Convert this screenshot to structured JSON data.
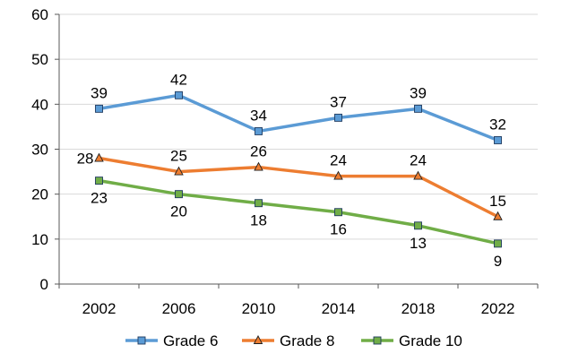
{
  "chart_data": {
    "type": "line",
    "categories": [
      "2002",
      "2006",
      "2010",
      "2014",
      "2018",
      "2022"
    ],
    "ylim": [
      0,
      60
    ],
    "yticks": [
      0,
      10,
      20,
      30,
      40,
      50,
      60
    ],
    "grid": true,
    "legend_position": "bottom",
    "series": [
      {
        "name": "Grade 6",
        "values": [
          39,
          42,
          34,
          37,
          39,
          32
        ],
        "color": "#5B9BD5",
        "marker": "square",
        "marker_fill": "#5B9BD5",
        "label_position": "above"
      },
      {
        "name": "Grade 8",
        "values": [
          28,
          25,
          26,
          24,
          24,
          15
        ],
        "color": "#ED7D31",
        "marker": "triangle",
        "marker_fill": "#ED7D31",
        "label_position": "above"
      },
      {
        "name": "Grade 10",
        "values": [
          23,
          20,
          18,
          16,
          13,
          9
        ],
        "color": "#70AD47",
        "marker": "square",
        "marker_fill": "#70AD47",
        "label_position": "below"
      }
    ]
  }
}
